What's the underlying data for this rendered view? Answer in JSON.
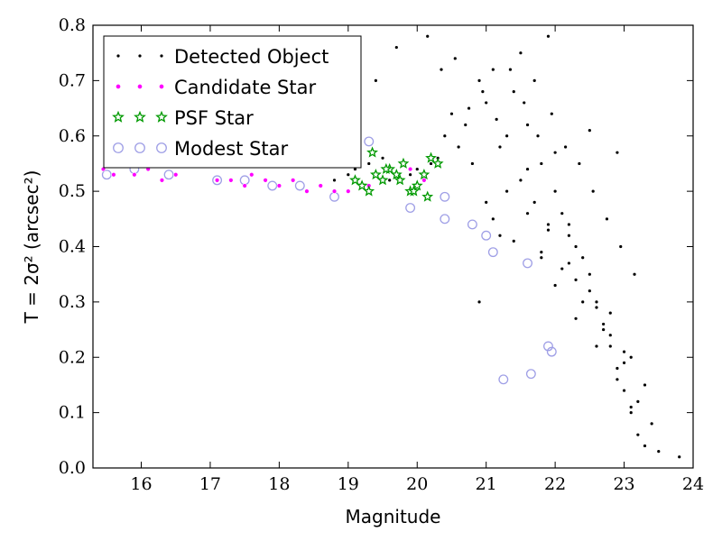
{
  "chart_data": {
    "type": "scatter",
    "xlabel": "Magnitude",
    "ylabel": "T = 2σ² (arcsec²)",
    "xlim": [
      15.3,
      24
    ],
    "ylim": [
      0,
      0.8
    ],
    "xticks": [
      "16",
      "17",
      "18",
      "19",
      "20",
      "21",
      "22",
      "23",
      "24"
    ],
    "yticks": [
      "0.0",
      "0.1",
      "0.2",
      "0.3",
      "0.4",
      "0.5",
      "0.6",
      "0.7",
      "0.8"
    ],
    "legend_position": "top-left",
    "colors": {
      "detected": "#000000",
      "candidate": "#ff00ff",
      "psf": "#009900",
      "modest": "#9f9fe6"
    },
    "series": [
      {
        "name": "Detected Object",
        "marker": "dot",
        "x": [
          18.8,
          19.0,
          19.1,
          19.3,
          19.5,
          19.6,
          19.8,
          19.9,
          20.0,
          20.1,
          20.2,
          20.3,
          20.4,
          20.5,
          20.6,
          20.7,
          20.8,
          20.9,
          21.0,
          21.1,
          21.2,
          21.3,
          21.4,
          21.5,
          21.6,
          21.7,
          21.8,
          21.9,
          22.0,
          22.1,
          22.2,
          22.3,
          22.4,
          22.5,
          22.6,
          22.7,
          22.8,
          22.9,
          23.0,
          23.1,
          23.2,
          23.3,
          23.5,
          23.8,
          19.4,
          19.7,
          20.15,
          20.35,
          20.55,
          20.75,
          20.95,
          21.15,
          21.35,
          21.55,
          21.75,
          21.95,
          22.15,
          22.35,
          22.55,
          22.75,
          22.95,
          23.15,
          21.0,
          21.3,
          21.6,
          21.9,
          22.2,
          22.5,
          22.8,
          23.1,
          21.8,
          22.1,
          22.4,
          22.7,
          23.0,
          23.3,
          22.0,
          22.3,
          22.6,
          22.9,
          23.2,
          21.5,
          21.7,
          21.9,
          22.2,
          22.6,
          23.0,
          23.4,
          21.1,
          21.4,
          21.8,
          22.3,
          22.8,
          23.1,
          20.9,
          21.2,
          21.6,
          22.0,
          22.5,
          22.9
        ],
        "y": [
          0.52,
          0.53,
          0.54,
          0.55,
          0.56,
          0.52,
          0.55,
          0.53,
          0.54,
          0.52,
          0.55,
          0.56,
          0.6,
          0.64,
          0.58,
          0.62,
          0.55,
          0.7,
          0.66,
          0.72,
          0.58,
          0.6,
          0.68,
          0.75,
          0.62,
          0.7,
          0.55,
          0.78,
          0.5,
          0.46,
          0.44,
          0.4,
          0.38,
          0.35,
          0.3,
          0.26,
          0.22,
          0.18,
          0.14,
          0.1,
          0.06,
          0.04,
          0.03,
          0.02,
          0.7,
          0.76,
          0.78,
          0.72,
          0.74,
          0.65,
          0.68,
          0.63,
          0.72,
          0.66,
          0.6,
          0.64,
          0.58,
          0.55,
          0.5,
          0.45,
          0.4,
          0.35,
          0.48,
          0.5,
          0.46,
          0.44,
          0.42,
          0.32,
          0.28,
          0.2,
          0.39,
          0.36,
          0.3,
          0.25,
          0.19,
          0.15,
          0.33,
          0.27,
          0.22,
          0.16,
          0.12,
          0.52,
          0.48,
          0.43,
          0.37,
          0.29,
          0.21,
          0.08,
          0.45,
          0.41,
          0.38,
          0.34,
          0.24,
          0.11,
          0.3,
          0.42,
          0.54,
          0.57,
          0.61,
          0.57
        ]
      },
      {
        "name": "Candidate Star",
        "marker": "small-circle",
        "x": [
          15.45,
          15.6,
          15.9,
          16.1,
          16.3,
          16.5,
          16.7,
          17.1,
          17.3,
          17.5,
          17.6,
          17.8,
          18.0,
          18.2,
          18.4,
          18.6,
          18.8,
          19.0,
          19.3,
          19.5,
          19.7,
          19.9,
          20.1,
          20.3
        ],
        "y": [
          0.54,
          0.53,
          0.53,
          0.54,
          0.52,
          0.53,
          0.55,
          0.52,
          0.52,
          0.51,
          0.53,
          0.52,
          0.51,
          0.52,
          0.5,
          0.51,
          0.5,
          0.5,
          0.51,
          0.52,
          0.53,
          0.54,
          0.52,
          0.55
        ]
      },
      {
        "name": "PSF Star",
        "marker": "star",
        "x": [
          19.1,
          19.2,
          19.3,
          19.4,
          19.5,
          19.6,
          19.7,
          19.8,
          19.9,
          20.0,
          20.1,
          20.2,
          20.3,
          19.35,
          19.55,
          19.75,
          19.95,
          20.15
        ],
        "y": [
          0.52,
          0.51,
          0.5,
          0.53,
          0.52,
          0.54,
          0.53,
          0.55,
          0.5,
          0.51,
          0.53,
          0.56,
          0.55,
          0.57,
          0.54,
          0.52,
          0.5,
          0.49
        ]
      },
      {
        "name": "Modest Star",
        "marker": "open-circle",
        "x": [
          15.5,
          15.9,
          16.4,
          17.1,
          17.5,
          17.9,
          18.3,
          18.8,
          19.3,
          19.9,
          20.4,
          20.8,
          21.0,
          21.1,
          21.6,
          21.9,
          21.95,
          21.65,
          21.25,
          20.4
        ],
        "y": [
          0.53,
          0.54,
          0.53,
          0.52,
          0.52,
          0.51,
          0.51,
          0.49,
          0.59,
          0.47,
          0.45,
          0.44,
          0.42,
          0.39,
          0.37,
          0.22,
          0.21,
          0.17,
          0.16,
          0.49
        ]
      }
    ]
  }
}
